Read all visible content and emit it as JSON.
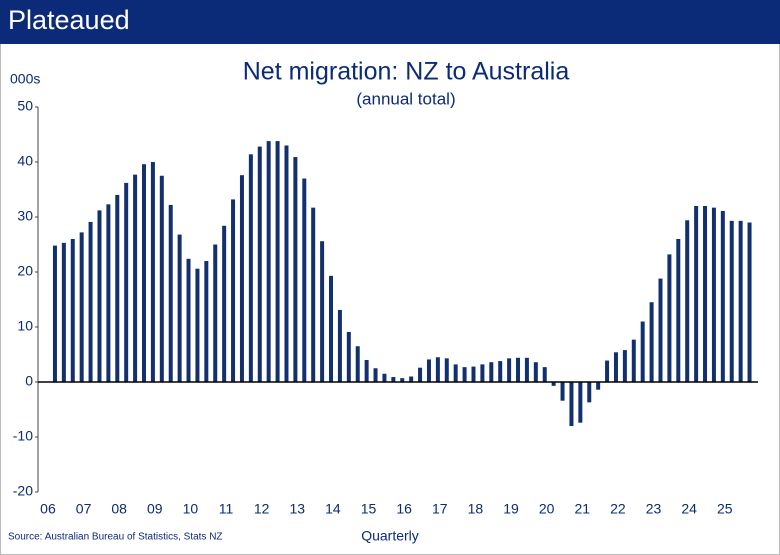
{
  "header": "Plateaued",
  "chart_data": {
    "type": "bar",
    "title": "Net migration: NZ to Australia",
    "subtitle": "(annual total)",
    "y_label": "000s",
    "x_label": "Quarterly",
    "source": "Source: Australian Bureau of Statistics, Stats NZ",
    "color": "#12306e",
    "categories": [
      "06",
      null,
      null,
      null,
      "07",
      null,
      null,
      null,
      "08",
      null,
      null,
      null,
      "09",
      null,
      null,
      null,
      "10",
      null,
      null,
      null,
      "11",
      null,
      null,
      null,
      "12",
      null,
      null,
      null,
      "13",
      null,
      null,
      null,
      "14",
      null,
      null,
      null,
      "15",
      null,
      null,
      null,
      "16",
      null,
      null,
      null,
      "17",
      null,
      null,
      null,
      "18",
      null,
      null,
      null,
      "19",
      null,
      null,
      null,
      "20",
      null,
      null,
      null,
      "21",
      null,
      null,
      null,
      "22",
      null,
      null,
      null,
      "23",
      null,
      null,
      null,
      "24",
      null,
      null,
      null,
      "25",
      null,
      null
    ],
    "values": [
      24.8,
      25.3,
      26,
      27.2,
      29.1,
      31.2,
      32.3,
      34,
      36.2,
      37.7,
      39.6,
      40,
      37.5,
      32.2,
      26.8,
      22.4,
      20.6,
      22,
      25,
      28.4,
      33.2,
      37.6,
      41.4,
      42.8,
      43.8,
      43.8,
      43,
      40.9,
      37,
      31.7,
      25.6,
      19.3,
      13.1,
      9.1,
      6.5,
      4,
      2.5,
      1.5,
      0.9,
      0.7,
      1,
      2.6,
      4.1,
      4.5,
      4.3,
      3.2,
      2.7,
      2.8,
      3.2,
      3.6,
      3.8,
      4.3,
      4.4,
      4.4,
      3.6,
      2.7,
      -0.7,
      -3.4,
      -8,
      -7.4,
      -3.7,
      -1.4,
      3.9,
      5.4,
      5.8,
      7.7,
      11,
      14.5,
      18.8,
      23.2,
      26,
      29.4,
      32,
      32,
      31.7,
      31.1,
      29.3,
      29.3,
      29
    ],
    "ylim": [
      -20,
      50
    ],
    "yticks": [
      -20,
      -10,
      0,
      10,
      20,
      30,
      40,
      50
    ]
  }
}
